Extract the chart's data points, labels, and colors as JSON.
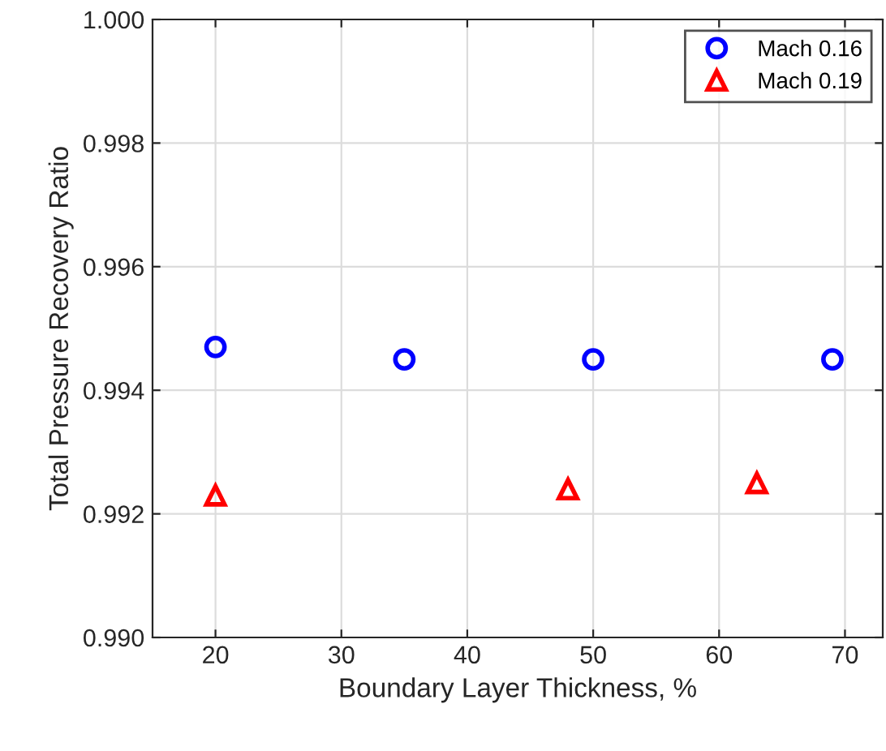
{
  "chart_data": {
    "type": "scatter",
    "xlabel": "Boundary Layer Thickness, %",
    "ylabel": "Total Pressure Recovery Ratio",
    "xlim": [
      15,
      73
    ],
    "xticks": [
      20,
      30,
      40,
      50,
      60,
      70
    ],
    "ylim": [
      0.99,
      1.0
    ],
    "yticks": [
      {
        "value": 0.99,
        "label": "0.990"
      },
      {
        "value": 0.992,
        "label": "0.992"
      },
      {
        "value": 0.994,
        "label": "0.994"
      },
      {
        "value": 0.996,
        "label": "0.996"
      },
      {
        "value": 0.998,
        "label": "0.998"
      },
      {
        "value": 1.0,
        "label": "1.000"
      }
    ],
    "grid": true,
    "legend": "top right",
    "series": [
      {
        "name": "Mach 0.16",
        "color": "#0000ff",
        "marker": "circle",
        "x": [
          20,
          35,
          50,
          69
        ],
        "values": [
          0.9947,
          0.9945,
          0.9945,
          0.9945
        ]
      },
      {
        "name": "Mach 0.19",
        "color": "#ff0000",
        "marker": "triangle",
        "x": [
          20,
          48,
          63
        ],
        "values": [
          0.9923,
          0.9924,
          0.9925
        ]
      }
    ]
  }
}
